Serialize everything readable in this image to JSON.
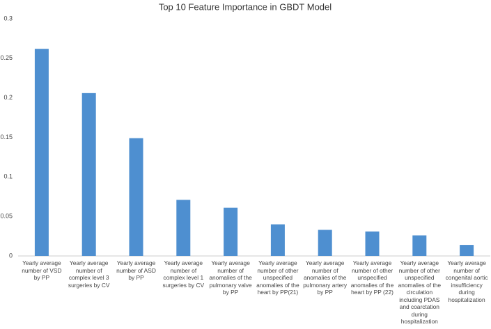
{
  "chart_data": {
    "type": "bar",
    "title": "Top 10 Feature Importance in GBDT Model",
    "categories": [
      "Yearly average number of VSD by PP",
      "Yearly average number of complex level 3 surgeries by CV",
      "Yearly average number of ASD by PP",
      "Yearly average number of complex level 1 surgeries by CV",
      "Yearly average number of anomalies of the pulmonary valve by PP",
      "Yearly average number of other unspecified anomalies of the heart by PP(21)",
      "Yearly average number of anomalies of the pulmonary artery by PP",
      "Yearly average number of other unspecified anomalies of the heart by PP (22)",
      "Yearly average number of other unspecified anomalies of the circulation including PDAS and coarctation during hospitalization",
      "Yearly average number of congenital aortic insufficiency during hospitalization"
    ],
    "values": [
      0.262,
      0.206,
      0.149,
      0.071,
      0.061,
      0.04,
      0.033,
      0.031,
      0.026,
      0.014
    ],
    "color": "#4e8fd0",
    "ylim": [
      0,
      0.3
    ],
    "yticks": [
      0,
      0.05,
      0.1,
      0.15,
      0.2,
      0.25,
      0.3
    ],
    "grid": false
  }
}
